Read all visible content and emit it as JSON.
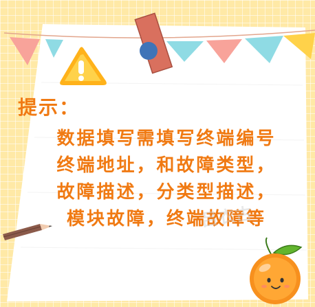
{
  "notice": {
    "title": "提示：",
    "body": "数据填写需填写终端编号终端地址，和故障类型，故障描述，分类型描述，模块故障，终端故障等"
  },
  "watermark": "吕衣古",
  "colors": {
    "background": "#ffe9a6",
    "paper": "#ffffff",
    "text": "#f07a13",
    "bunting_pink": "#f8a39a",
    "bunting_cyan": "#8fdbe4",
    "bunting_yellow": "#ffd24a",
    "warning": "#ffb21a",
    "orange": "#f7901e"
  },
  "icons": [
    "warning-icon",
    "bunting-flags",
    "washi-tape",
    "push-pin",
    "pencil",
    "orange-mascot"
  ]
}
